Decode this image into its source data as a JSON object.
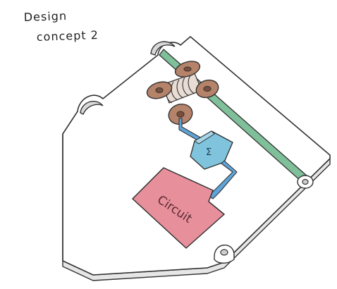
{
  "title": {
    "line1": "Design",
    "line2": "concept 2"
  },
  "labels": {
    "circuit": "Circuit",
    "sensor": "Σ"
  },
  "colors": {
    "background": "#ffffff",
    "outline": "#333333",
    "plate_fill": "#ffffff",
    "plate_edge": "#e6e6e6",
    "rod": "#7fbf9a",
    "coil": "#b5826a",
    "coil_dark": "#7a4f3c",
    "sensor": "#7fc3dd",
    "wire": "#5ea4d8",
    "circuit": "#e7909c"
  },
  "icons": {
    "mount_holes": "semicircle-notch-icon",
    "pivot": "pivot-bolt-icon",
    "spool": "spool-coil-icon"
  }
}
